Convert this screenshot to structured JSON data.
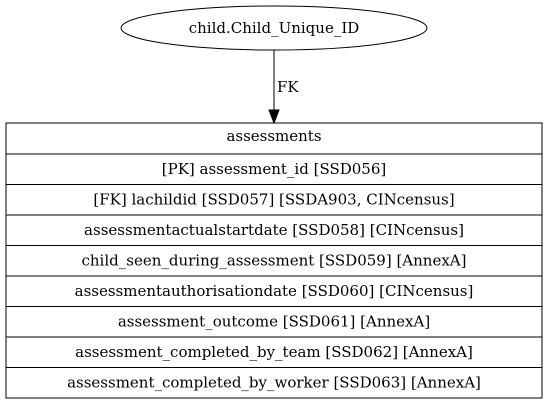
{
  "diagram": {
    "source_node": {
      "label": "child.Child_Unique_ID"
    },
    "edge": {
      "label": "FK"
    },
    "table": {
      "title": "assessments",
      "rows": [
        "[PK] assessment_id [SSD056]",
        "[FK] lachildid [SSD057] [SSDA903, CINcensus]",
        "assessmentactualstartdate [SSD058] [CINcensus]",
        "child_seen_during_assessment [SSD059] [AnnexA]",
        "assessmentauthorisationdate [SSD060] [CINcensus]",
        "assessment_outcome [SSD061] [AnnexA]",
        "assessment_completed_by_team [SSD062] [AnnexA]",
        "assessment_completed_by_worker [SSD063] [AnnexA]"
      ]
    },
    "colors": {
      "stroke": "#000000",
      "fill": "#ffffff",
      "text": "#000000"
    }
  }
}
